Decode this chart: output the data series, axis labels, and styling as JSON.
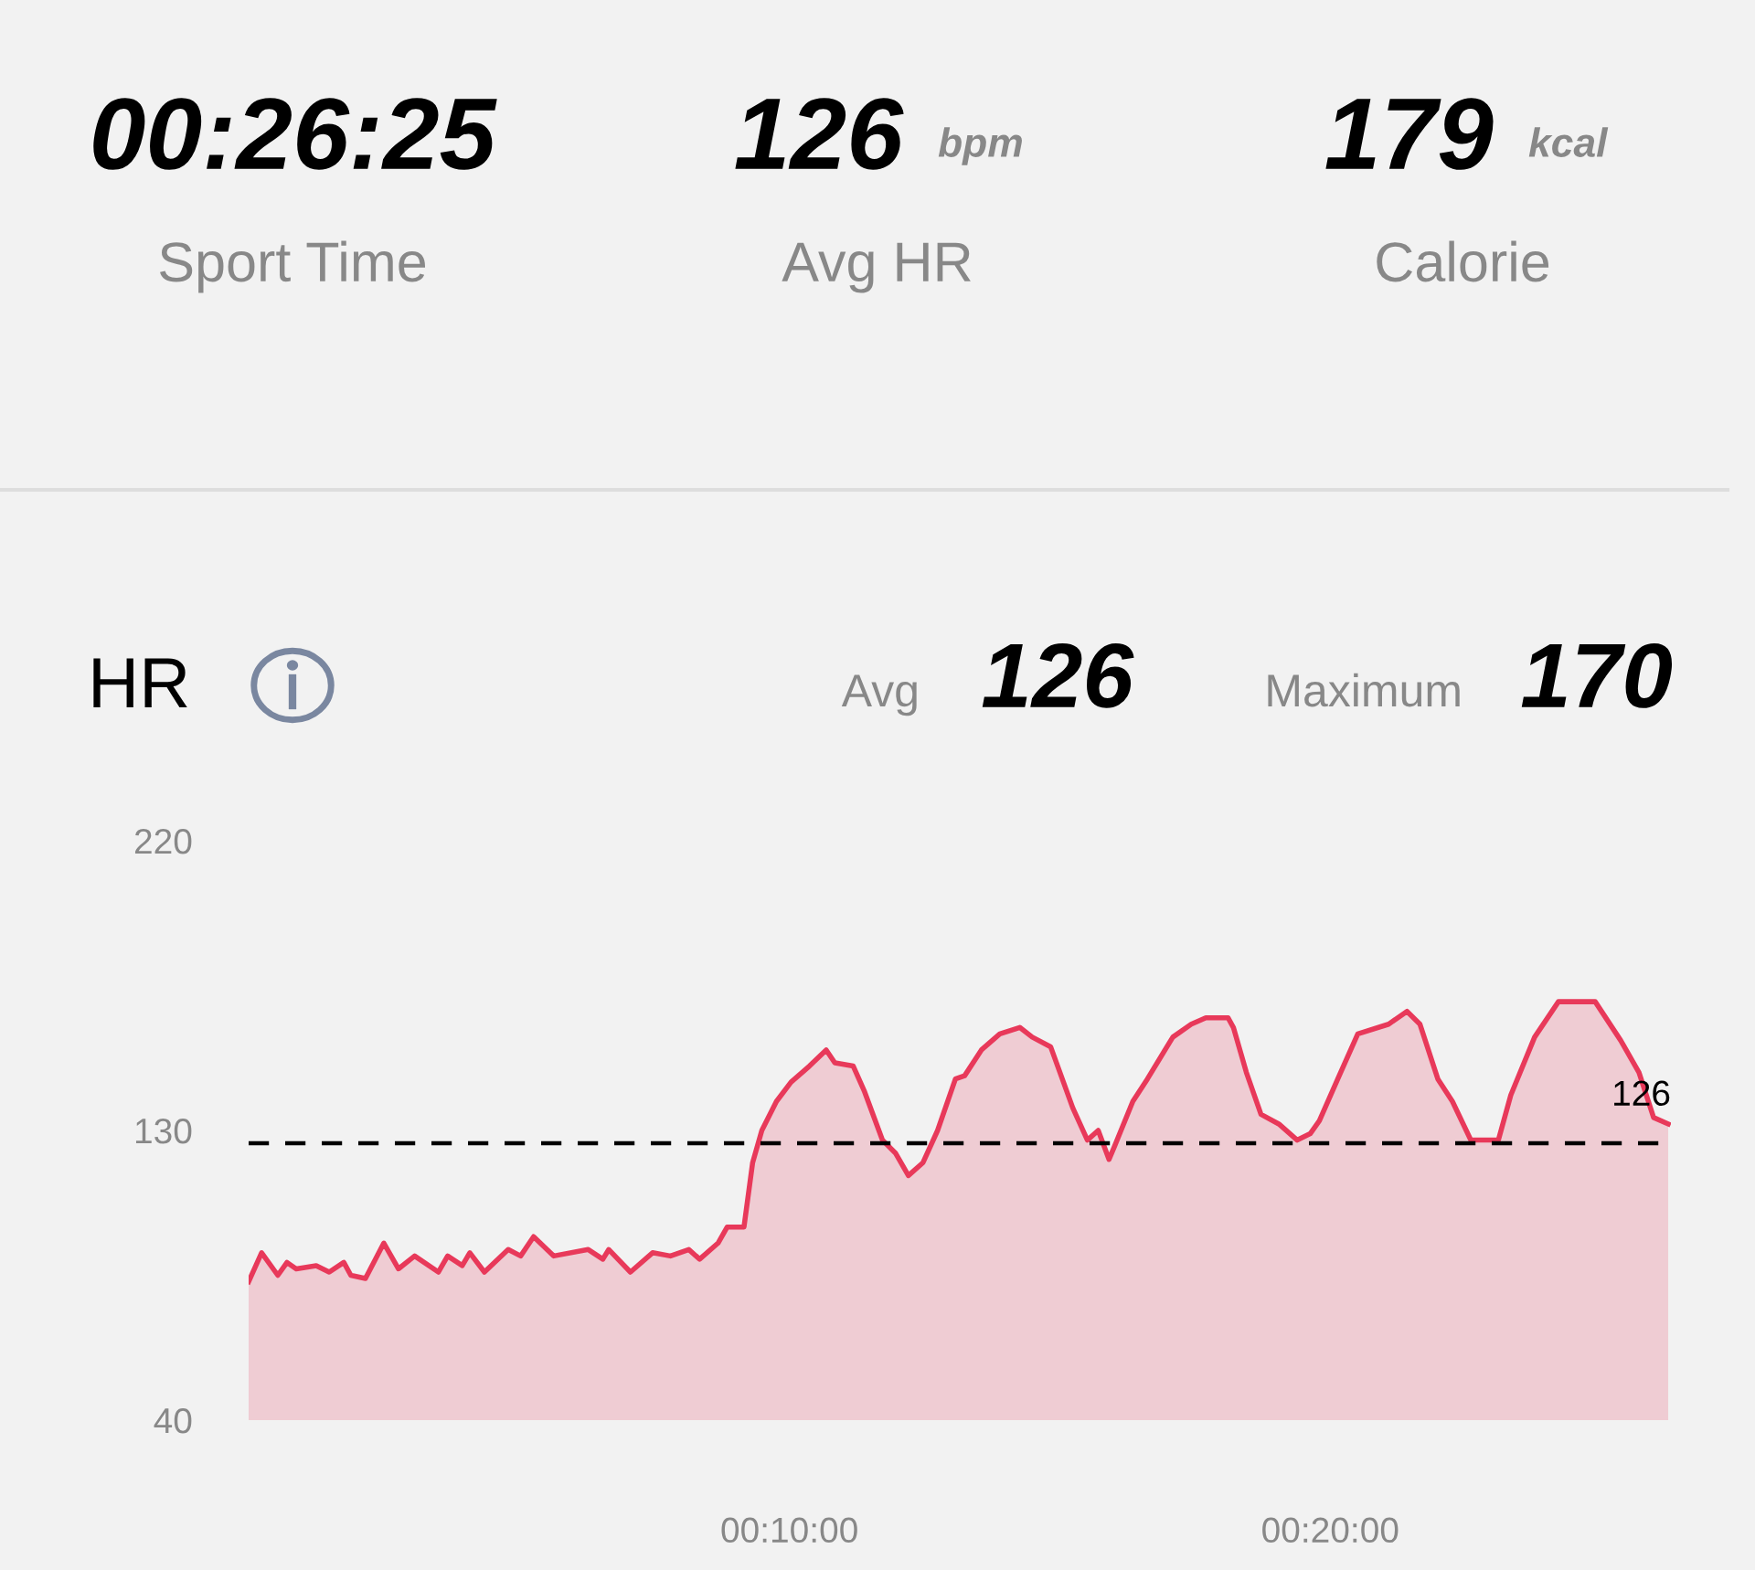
{
  "chart_data": {
    "type": "area",
    "title": "HR",
    "annotations": [
      "00:26:25",
      "Sport Time",
      "126",
      "bpm",
      "Avg HR",
      "179",
      "kcal",
      "Calorie",
      "Avg",
      "126",
      "Maximum",
      "170"
    ],
    "series": [
      {
        "color": "#e8395a",
        "x": [
          0,
          0.24,
          0.54,
          0.71,
          0.88,
          1.25,
          1.49,
          1.76,
          1.89,
          2.16,
          2.5,
          2.77,
          3.07,
          3.51,
          3.68,
          3.95,
          4.09,
          4.36,
          4.8,
          5.03,
          5.27,
          5.64,
          6.28,
          6.55,
          6.66,
          7.06,
          7.47,
          7.8,
          8.14,
          8.34,
          8.68,
          8.85,
          9.16,
          9.32,
          9.49,
          9.76,
          10.03,
          10.37,
          10.68,
          10.84,
          11.18,
          11.39,
          11.72,
          11.96,
          12.2,
          12.47,
          12.74,
          13.07,
          13.24,
          13.55,
          13.89,
          14.26,
          14.49,
          14.83,
          15.24,
          15.51,
          15.71,
          15.91,
          16.01,
          16.35,
          16.62,
          17.09,
          17.43,
          17.7,
          18.11,
          18.21,
          18.45,
          18.72,
          19.05,
          19.39,
          19.63,
          19.8,
          20.14,
          20.51,
          21.08,
          21.42,
          21.66,
          21.99,
          22.26,
          22.6,
          23.11,
          23.34,
          23.78,
          24.22,
          24.9,
          25.37,
          25.71,
          25.98,
          26.25
        ],
        "values": [
          83,
          92,
          85,
          89,
          87,
          88,
          86,
          89,
          85,
          84,
          95,
          87,
          91,
          86,
          91,
          88,
          92,
          86,
          93,
          91,
          97,
          91,
          93,
          90,
          93,
          86,
          92,
          91,
          93,
          90,
          95,
          100,
          100,
          120,
          130,
          139,
          145,
          150,
          155,
          151,
          150,
          142,
          127,
          123,
          116,
          120,
          130,
          146,
          147,
          155,
          160,
          162,
          159,
          156,
          137,
          127,
          130,
          121,
          125,
          139,
          146,
          159,
          163,
          165,
          165,
          162,
          148,
          135,
          132,
          127,
          129,
          133,
          146,
          160,
          163,
          167,
          163,
          146,
          139,
          127,
          127,
          141,
          159,
          170,
          170,
          158,
          148,
          134,
          132
        ]
      }
    ],
    "xlim": [
      0,
      26.3
    ],
    "xticks": [
      {
        "value": 10,
        "label": "00:10:00"
      },
      {
        "value": 20,
        "label": "00:20:00"
      }
    ],
    "ylim": [
      40,
      220
    ],
    "yticks": [
      40,
      130,
      220
    ],
    "ref_lines": [
      {
        "axis": "y",
        "value": 126,
        "label": "126",
        "color": "#000000",
        "line_style": "dashed"
      }
    ],
    "grid": false,
    "legend": false
  }
}
